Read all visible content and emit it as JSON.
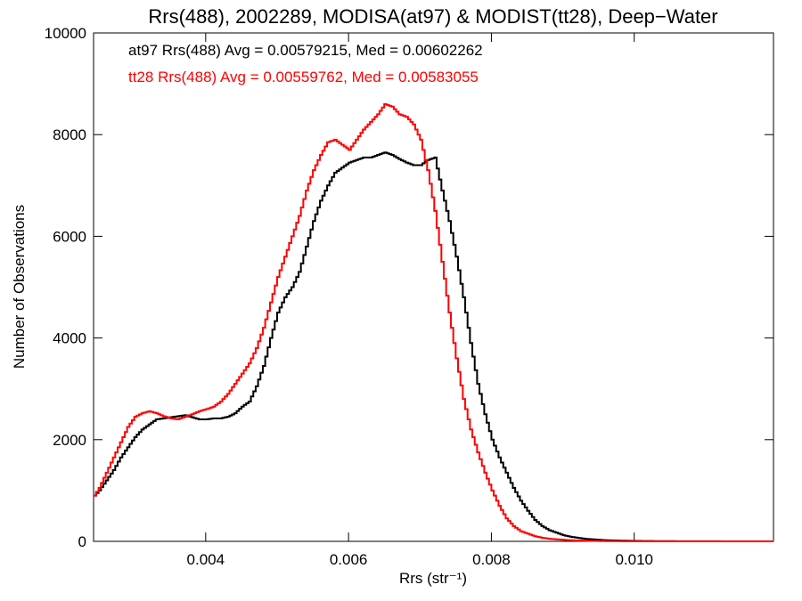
{
  "chart_data": {
    "type": "line",
    "title": "Rrs(488), 2002289, MODISA(at97) & MODIST(tt28), Deep−Water",
    "xlabel": "Rrs (str⁻¹)",
    "ylabel": "Number of Observations",
    "xlim": [
      0.00243,
      0.01195
    ],
    "ylim": [
      0,
      10000
    ],
    "x_ticks": [
      {
        "value": 0.004,
        "label": "0.004"
      },
      {
        "value": 0.006,
        "label": "0.006"
      },
      {
        "value": 0.008,
        "label": "0.008"
      },
      {
        "value": 0.01,
        "label": "0.010"
      }
    ],
    "y_ticks": [
      {
        "value": 0,
        "label": "0"
      },
      {
        "value": 2000,
        "label": "2000"
      },
      {
        "value": 4000,
        "label": "4000"
      },
      {
        "value": 6000,
        "label": "6000"
      },
      {
        "value": 8000,
        "label": "8000"
      },
      {
        "value": 10000,
        "label": "10000"
      }
    ],
    "step_style": "histogram",
    "annotations": [
      {
        "text": "at97 Rrs(488) Avg = 0.00579215, Med = 0.00602262",
        "color": "#000000"
      },
      {
        "text": "tt28 Rrs(488) Avg = 0.00559762, Med = 0.00583055",
        "color": "#ff0000"
      }
    ],
    "series": [
      {
        "color": "#000000",
        "x": [
          0.00243,
          0.0025,
          0.0026,
          0.0027,
          0.0028,
          0.0029,
          0.003,
          0.0031,
          0.0032,
          0.0033,
          0.0034,
          0.0035,
          0.0036,
          0.0037,
          0.0038,
          0.0039,
          0.004,
          0.0041,
          0.0042,
          0.0043,
          0.0044,
          0.0045,
          0.0046,
          0.0047,
          0.0048,
          0.0049,
          0.005,
          0.0051,
          0.0052,
          0.0053,
          0.0054,
          0.0055,
          0.0056,
          0.0057,
          0.0058,
          0.0059,
          0.006,
          0.0061,
          0.0062,
          0.0063,
          0.0064,
          0.0065,
          0.0066,
          0.0067,
          0.0068,
          0.0069,
          0.007,
          0.0071,
          0.0072,
          0.0073,
          0.0074,
          0.0075,
          0.0076,
          0.0077,
          0.0078,
          0.0079,
          0.008,
          0.0081,
          0.0082,
          0.0083,
          0.0084,
          0.0085,
          0.0086,
          0.0087,
          0.0088,
          0.0089,
          0.009,
          0.0091,
          0.0092,
          0.0093,
          0.0094,
          0.0095,
          0.0096,
          0.0097,
          0.0098,
          0.0099,
          0.01,
          0.0102,
          0.0104,
          0.0106,
          0.0108,
          0.011,
          0.0112,
          0.0114,
          0.0116,
          0.0118,
          0.01195
        ],
        "y": [
          900,
          1000,
          1200,
          1400,
          1650,
          1850,
          2050,
          2200,
          2300,
          2400,
          2420,
          2440,
          2460,
          2480,
          2440,
          2400,
          2400,
          2420,
          2420,
          2450,
          2520,
          2650,
          2750,
          3050,
          3450,
          4000,
          4500,
          4800,
          5000,
          5300,
          5800,
          6300,
          6700,
          7000,
          7250,
          7350,
          7450,
          7500,
          7550,
          7550,
          7600,
          7650,
          7600,
          7520,
          7450,
          7400,
          7400,
          7500,
          7550,
          6900,
          6300,
          5600,
          4800,
          3900,
          3100,
          2500,
          2000,
          1650,
          1350,
          1050,
          800,
          600,
          420,
          300,
          220,
          170,
          120,
          90,
          70,
          50,
          40,
          30,
          22,
          18,
          14,
          11,
          9,
          6,
          4,
          3,
          2,
          2,
          1,
          1,
          1,
          0,
          0
        ]
      },
      {
        "color": "#ff0000",
        "x": [
          0.00243,
          0.0025,
          0.0026,
          0.0027,
          0.0028,
          0.0029,
          0.003,
          0.0031,
          0.0032,
          0.0033,
          0.0034,
          0.0035,
          0.0036,
          0.0037,
          0.0038,
          0.0039,
          0.004,
          0.0041,
          0.0042,
          0.0043,
          0.0044,
          0.0045,
          0.0046,
          0.0047,
          0.0048,
          0.0049,
          0.005,
          0.0051,
          0.0052,
          0.0053,
          0.0054,
          0.0055,
          0.0056,
          0.0057,
          0.0058,
          0.0059,
          0.006,
          0.0061,
          0.0062,
          0.0063,
          0.0064,
          0.0065,
          0.0066,
          0.0067,
          0.0068,
          0.0069,
          0.007,
          0.0071,
          0.0072,
          0.0073,
          0.0074,
          0.0075,
          0.0076,
          0.0077,
          0.0078,
          0.0079,
          0.008,
          0.0081,
          0.0082,
          0.0083,
          0.0084,
          0.0085,
          0.0086,
          0.0087,
          0.0088,
          0.0089,
          0.009,
          0.0091,
          0.0092,
          0.0093,
          0.0094,
          0.0095,
          0.0096,
          0.0097,
          0.0098,
          0.0099,
          0.01,
          0.0102,
          0.0104,
          0.0106,
          0.0108,
          0.011,
          0.0112,
          0.0114,
          0.0116,
          0.0118,
          0.01195
        ],
        "y": [
          900,
          1050,
          1350,
          1650,
          1950,
          2250,
          2450,
          2520,
          2560,
          2520,
          2460,
          2420,
          2400,
          2450,
          2500,
          2560,
          2600,
          2650,
          2750,
          2900,
          3100,
          3300,
          3500,
          3800,
          4200,
          4700,
          5200,
          5600,
          6000,
          6400,
          6900,
          7300,
          7600,
          7850,
          7900,
          7800,
          7700,
          7900,
          8100,
          8250,
          8400,
          8600,
          8550,
          8400,
          8350,
          8200,
          7900,
          7300,
          6500,
          5500,
          4500,
          3600,
          2800,
          2200,
          1750,
          1350,
          1000,
          700,
          450,
          300,
          200,
          150,
          100,
          70,
          50,
          40,
          30,
          22,
          16,
          12,
          9,
          7,
          5,
          4,
          3,
          2,
          2,
          1,
          1,
          1,
          0,
          0,
          0,
          0,
          0,
          0,
          0
        ]
      }
    ]
  }
}
